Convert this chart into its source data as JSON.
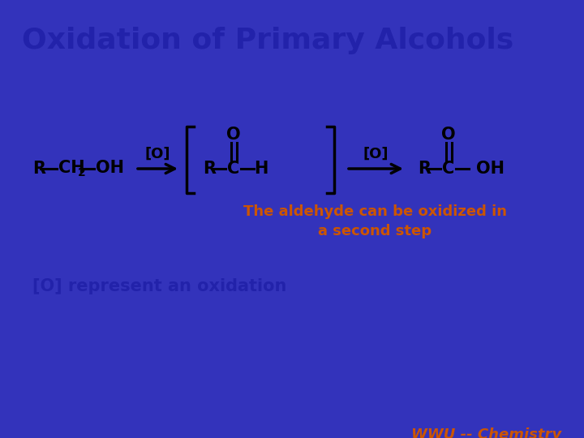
{
  "title": "Oxidation of Primary Alcohols",
  "title_color": "#2222AA",
  "title_fontsize": 26,
  "bg_color": "#FFFFFF",
  "border_color": "#3333BB",
  "note_orange": "The aldehyde can be oxidized in\na second step",
  "note_orange_color": "#CC5500",
  "note_blue": "[O] represent an oxidation",
  "note_blue_color": "#2222AA",
  "footer": "WWU -- Chemistry",
  "footer_color": "#CC5500",
  "chem_color": "#000000",
  "chem_fontsize": 15,
  "chem_sub_fontsize": 10
}
